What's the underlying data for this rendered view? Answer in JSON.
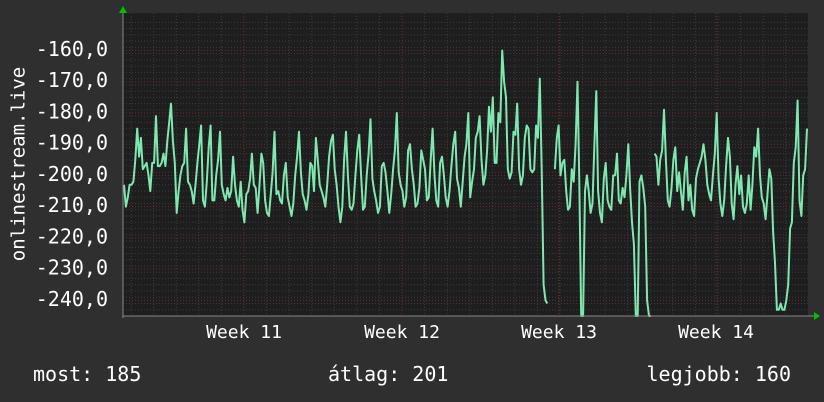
{
  "chart_data": {
    "type": "line",
    "ylabel": "onlinestream.live",
    "ylim": [
      -245,
      -148
    ],
    "y_ticks": [
      "-160,0",
      "-170,0",
      "-180,0",
      "-190,0",
      "-200,0",
      "-210,0",
      "-220,0",
      "-230,0",
      "-240,0"
    ],
    "x_ticks": [
      "Week 11",
      "Week 12",
      "Week 13",
      "Week 14"
    ],
    "grid": true,
    "colors": {
      "background": "#2f2f2f",
      "plot": "#1e1e1e",
      "line": "#7fe8b0",
      "grid_major": "#6e2a2a",
      "grid_minor": "#3c3c3c",
      "arrow": "#00c000"
    },
    "series": [
      {
        "values": [
          -203,
          -210,
          -207,
          -203,
          -203,
          -202,
          -195,
          -185,
          -194,
          -188,
          -198,
          -197,
          -196,
          -200,
          -205,
          -196,
          -196,
          -181,
          -197,
          -197,
          -196,
          -193,
          -197,
          -189,
          -183,
          -177,
          -189,
          -196,
          -212,
          -205,
          -200,
          -197,
          -196,
          -185,
          -202,
          -203,
          -205,
          -209,
          -203,
          -196,
          -190,
          -184,
          -208,
          -210,
          -202,
          -191,
          -184,
          -208,
          -208,
          -200,
          -195,
          -186,
          -203,
          -206,
          -208,
          -204,
          -207,
          -205,
          -194,
          -203,
          -208,
          -210,
          -202,
          -211,
          -215,
          -206,
          -205,
          -201,
          -193,
          -203,
          -204,
          -212,
          -203,
          -193,
          -196,
          -208,
          -212,
          -213,
          -206,
          -199,
          -186,
          -206,
          -205,
          -208,
          -209,
          -200,
          -196,
          -207,
          -210,
          -213,
          -209,
          -200,
          -194,
          -186,
          -199,
          -206,
          -208,
          -211,
          -206,
          -196,
          -197,
          -205,
          -188,
          -195,
          -203,
          -205,
          -207,
          -210,
          -203,
          -194,
          -189,
          -187,
          -198,
          -203,
          -210,
          -215,
          -210,
          -195,
          -186,
          -200,
          -210,
          -211,
          -209,
          -200,
          -192,
          -187,
          -200,
          -211,
          -210,
          -200,
          -193,
          -182,
          -201,
          -205,
          -208,
          -212,
          -210,
          -197,
          -196,
          -199,
          -205,
          -212,
          -206,
          -198,
          -192,
          -180,
          -199,
          -203,
          -205,
          -210,
          -207,
          -192,
          -190,
          -198,
          -203,
          -210,
          -209,
          -204,
          -192,
          -195,
          -198,
          -208,
          -207,
          -195,
          -185,
          -200,
          -208,
          -210,
          -196,
          -194,
          -200,
          -207,
          -210,
          -205,
          -197,
          -190,
          -186,
          -201,
          -204,
          -210,
          -202,
          -194,
          -190,
          -180,
          -207,
          -202,
          -198,
          -188,
          -186,
          -181,
          -195,
          -203,
          -200,
          -192,
          -178,
          -186,
          -175,
          -196,
          -196,
          -180,
          -183,
          -160,
          -170,
          -175,
          -198,
          -201,
          -199,
          -186,
          -187,
          -177,
          -198,
          -203,
          -200,
          -188,
          -184,
          -185,
          -198,
          -199,
          -198,
          -184,
          -188,
          -169,
          -198,
          -235,
          -240,
          -241,
          null,
          null,
          null,
          -198,
          -188,
          -184,
          -200,
          -196,
          -195,
          -205,
          -211,
          -210,
          -198,
          -202,
          -190,
          -170,
          -202,
          -245,
          -245,
          -205,
          -200,
          -205,
          -212,
          -209,
          -190,
          -173,
          -205,
          -212,
          -215,
          -201,
          -196,
          -208,
          -210,
          -211,
          -200,
          -200,
          -193,
          -208,
          -209,
          -204,
          -207,
          -200,
          -190,
          -204,
          -215,
          -222,
          -245,
          -245,
          -202,
          -200,
          -204,
          -210,
          -240,
          -245,
          -245,
          null,
          -193,
          -194,
          -203,
          -195,
          -192,
          -179,
          -195,
          -208,
          -210,
          -204,
          -195,
          -191,
          -205,
          -199,
          -205,
          -211,
          -199,
          -194,
          -208,
          -203,
          -211,
          -213,
          -201,
          -198,
          -196,
          -194,
          -190,
          -195,
          -203,
          -206,
          -208,
          -200,
          -193,
          -180,
          -201,
          -209,
          -213,
          -208,
          -197,
          -188,
          -194,
          -209,
          -214,
          -203,
          -197,
          -206,
          -200,
          -210,
          -212,
          -209,
          -200,
          -211,
          -203,
          -191,
          -194,
          -185,
          -200,
          -207,
          -209,
          -214,
          -206,
          -198,
          -201,
          -218,
          -228,
          -243,
          -243,
          -241,
          -243,
          -243,
          -240,
          -235,
          -217,
          -215,
          -196,
          -191,
          -176,
          -208,
          -213,
          -200,
          -198,
          -185
        ]
      }
    ]
  },
  "footer": {
    "now": "most: 185",
    "avg": "átlag: 201",
    "best": "legjobb: 160"
  }
}
